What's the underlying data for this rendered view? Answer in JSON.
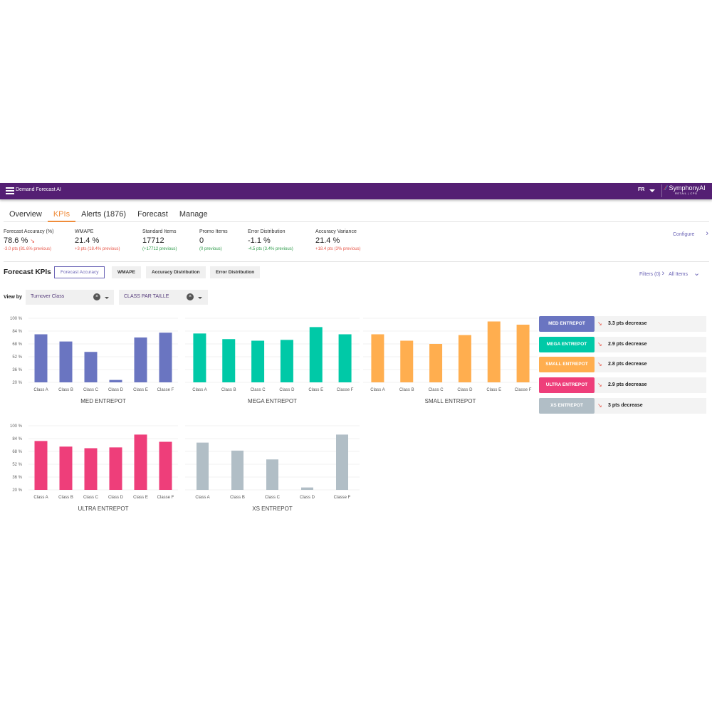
{
  "header": {
    "title": "Demand Forecast AI",
    "lang": "FR",
    "logo": "SymphonyAI",
    "logo_sub": "RETAIL | CPG",
    "brand_color": "#541f73"
  },
  "tabs": [
    {
      "label": "Overview"
    },
    {
      "label": "KPIs",
      "active": true
    },
    {
      "label": "Alerts (1876)"
    },
    {
      "label": "Forecast"
    },
    {
      "label": "Manage"
    }
  ],
  "kpis": [
    {
      "label": "Forecast Accuracy (%)",
      "value": "78.6 %",
      "delta": "-3.0 pts (81.6% previous)",
      "trend": "down",
      "tone": "red"
    },
    {
      "label": "WMAPE",
      "value": "21.4 %",
      "delta": "+3 pts (18.4% previous)",
      "tone": "red"
    },
    {
      "label": "Standard Items",
      "value": "17712",
      "delta": "(+17712 previous)",
      "tone": "green"
    },
    {
      "label": "Promo Items",
      "value": "0",
      "delta": "(0 previous)",
      "tone": "green"
    },
    {
      "label": "Error Distribution",
      "value": "-1.1 %",
      "delta": "-4.5 pts (3.4% previous)",
      "tone": "green"
    },
    {
      "label": "Accuracy Variance",
      "value": "21.4 %",
      "delta": "+18.4 pts (3% previous)",
      "tone": "red"
    }
  ],
  "configure": "Configure",
  "forecast_kpis": {
    "title": "Forecast KPIs",
    "buttons": [
      "Forecast Accuracy",
      "WMAPE",
      "Accuracy Distribution",
      "Error Distribution"
    ],
    "active": "Forecast Accuracy",
    "filters": "Filters (0)",
    "all_items": "All Items"
  },
  "view_by": {
    "label": "View by",
    "selects": [
      "Turnover Class",
      "CLASS PAR TAILLE"
    ]
  },
  "legend": [
    {
      "name": "MED ENTREPOT",
      "color": "#6a75c1",
      "text": "3.3 pts decrease"
    },
    {
      "name": "MEGA ENTREPOT",
      "color": "#00c9a7",
      "text": "2.9 pts decrease"
    },
    {
      "name": "SMALL ENTREPOT",
      "color": "#ffae4f",
      "text": "2.8 pts decrease"
    },
    {
      "name": "ULTRA ENTREPOT",
      "color": "#ee3e7a",
      "text": "2.9 pts decrease"
    },
    {
      "name": "XS ENTREPOT",
      "color": "#b1bec6",
      "text": "3 pts decrease"
    }
  ],
  "chart_data": [
    {
      "type": "bar",
      "title": "MED ENTREPOT",
      "color": "#6a75c1",
      "categories": [
        "Class A",
        "Class B",
        "Class C",
        "Class D",
        "Class E",
        "Classe F"
      ],
      "values": [
        80,
        71,
        58,
        23,
        76,
        82
      ],
      "ylim": [
        20,
        100
      ],
      "yticks": [
        "20 %",
        "36 %",
        "52 %",
        "68 %",
        "84 %",
        "100 %"
      ],
      "grid": true
    },
    {
      "type": "bar",
      "title": "MEGA ENTREPOT",
      "color": "#00c9a7",
      "categories": [
        "Class A",
        "Class B",
        "Class C",
        "Class D",
        "Class E",
        "Classe F"
      ],
      "values": [
        81,
        74,
        72,
        73,
        89,
        80
      ],
      "ylim": [
        20,
        100
      ],
      "grid": true
    },
    {
      "type": "bar",
      "title": "SMALL ENTREPOT",
      "color": "#ffae4f",
      "categories": [
        "Class A",
        "Class B",
        "Class C",
        "Class D",
        "Class E",
        "Classe F"
      ],
      "values": [
        80,
        72,
        68,
        79,
        96,
        92
      ],
      "ylim": [
        20,
        100
      ],
      "grid": true
    },
    {
      "type": "bar",
      "title": "ULTRA ENTREPOT",
      "color": "#ee3e7a",
      "categories": [
        "Class A",
        "Class B",
        "Class C",
        "Class D",
        "Class E",
        "Classe F"
      ],
      "values": [
        81,
        74,
        72,
        73,
        89,
        80
      ],
      "ylim": [
        20,
        100
      ],
      "yticks": [
        "20 %",
        "36 %",
        "52 %",
        "68 %",
        "84 %",
        "100 %"
      ],
      "grid": true
    },
    {
      "type": "bar",
      "title": "XS ENTREPOT",
      "color": "#b1bec6",
      "categories": [
        "Class A",
        "Class B",
        "Class C",
        "Class D",
        "Classe F"
      ],
      "values": [
        79,
        69,
        58,
        23,
        89
      ],
      "ylim": [
        20,
        100
      ],
      "grid": true
    }
  ]
}
